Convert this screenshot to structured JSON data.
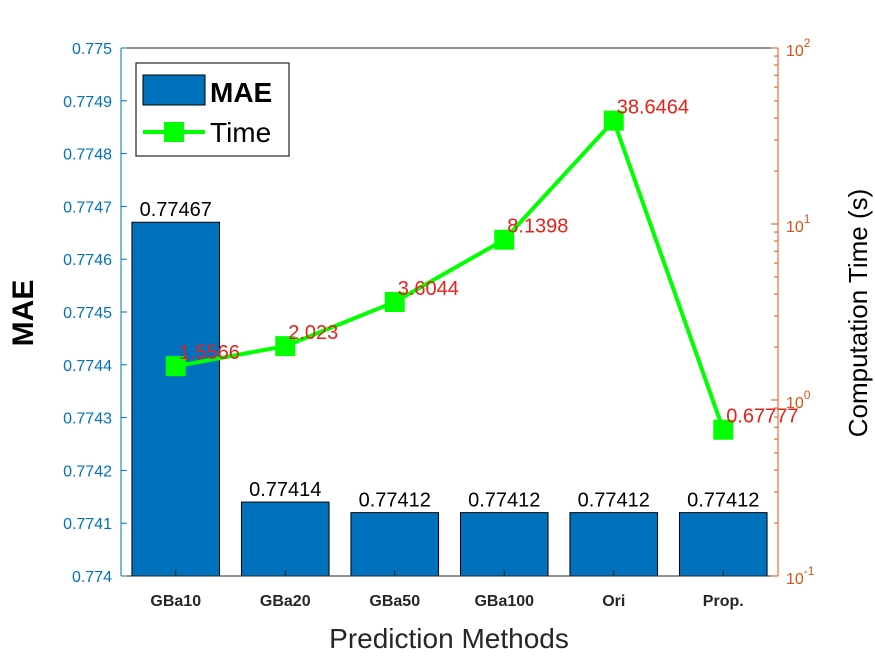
{
  "chart_data": {
    "type": "bar",
    "xlabel": "Prediction Methods",
    "ylabel_left": "MAE",
    "ylabel_right": "Computation  Time (s)",
    "categories": [
      "GBa10",
      "GBa20",
      "GBa50",
      "GBa100",
      "Ori",
      "Prop."
    ],
    "left_axis": {
      "scale": "linear",
      "ylim": [
        0.774,
        0.775
      ],
      "ticks": [
        "0.774",
        "0.7741",
        "0.7742",
        "0.7743",
        "0.7744",
        "0.7745",
        "0.7746",
        "0.7747",
        "0.7748",
        "0.7749",
        "0.775"
      ]
    },
    "right_axis": {
      "scale": "log",
      "ylim": [
        0.1,
        100
      ],
      "ticks": [
        {
          "base": "10",
          "exp": "-1"
        },
        {
          "base": "10",
          "exp": "0"
        },
        {
          "base": "10",
          "exp": "1"
        },
        {
          "base": "10",
          "exp": "2"
        }
      ]
    },
    "series": [
      {
        "name": "MAE",
        "kind": "bar",
        "axis": "left",
        "color": "#0072BD",
        "values": [
          0.77467,
          0.77414,
          0.77412,
          0.77412,
          0.77412,
          0.77412
        ],
        "labels": [
          "0.77467",
          "0.77414",
          "0.77412",
          "0.77412",
          "0.77412",
          "0.77412"
        ]
      },
      {
        "name": "Time",
        "kind": "line",
        "axis": "right",
        "color": "#00FF00",
        "label_color": "#E8201A",
        "values": [
          1.5566,
          2.023,
          3.6044,
          8.1398,
          38.6464,
          0.67777
        ],
        "labels": [
          "1.5566",
          "2.023",
          "3.6044",
          "8.1398",
          "38.6464",
          "0.67777"
        ]
      }
    ],
    "legend": {
      "position": "top-left",
      "entries": [
        "MAE",
        "Time"
      ]
    },
    "grid": false
  }
}
